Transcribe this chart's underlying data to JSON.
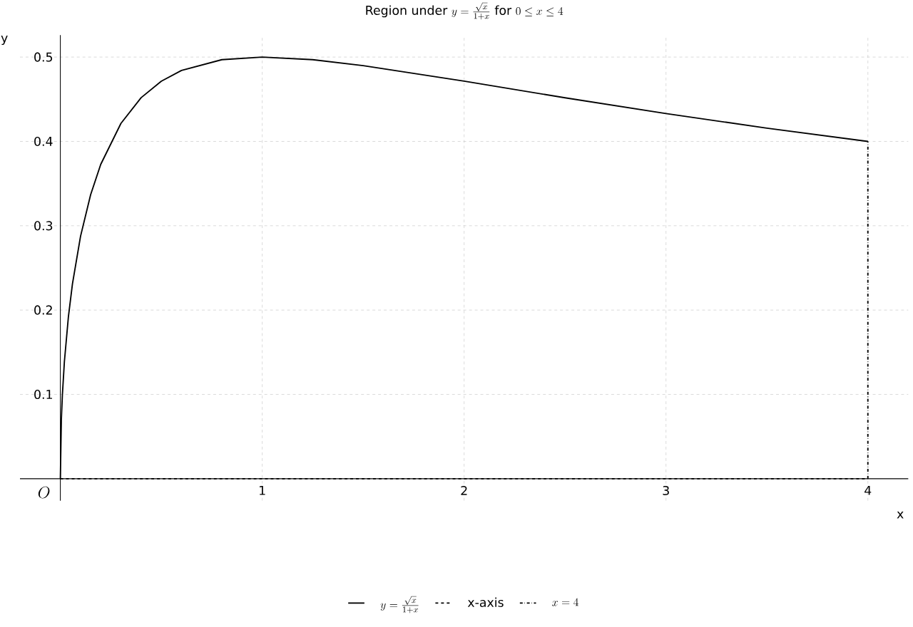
{
  "chart_data": {
    "type": "line",
    "title": "\\text{Region under } y=\\frac{\\sqrt{x}}{1+x} \\text{ for } 0\\leq x\\leq 4",
    "xlabel": "x",
    "ylabel": "y",
    "xlim": [
      -0.2,
      4.2
    ],
    "ylim": [
      -0.026,
      0.526
    ],
    "xticks": [
      1,
      2,
      3,
      4
    ],
    "yticks": [
      0.1,
      0.2,
      0.3,
      0.4,
      0.5
    ],
    "grid": true,
    "legend": "bottom",
    "annotations": [
      "O"
    ],
    "series": [
      {
        "name": "y=\\frac{\\sqrt{x}}{1+x}",
        "color": "#000000",
        "line_style": "solid",
        "x": [
          0,
          0.005,
          0.01,
          0.02,
          0.04,
          0.06,
          0.1,
          0.15,
          0.2,
          0.3,
          0.4,
          0.5,
          0.6,
          0.8,
          1,
          1.25,
          1.5,
          2,
          2.5,
          3,
          3.5,
          4
        ],
        "values": [
          0,
          0.0704,
          0.099,
          0.1387,
          0.1923,
          0.2311,
          0.2875,
          0.3368,
          0.3727,
          0.4213,
          0.4518,
          0.4714,
          0.4841,
          0.4969,
          0.5,
          0.4969,
          0.4899,
          0.4714,
          0.4517,
          0.433,
          0.4157,
          0.4
        ]
      },
      {
        "name": "\\text{x-axis}",
        "color": "#000000",
        "line_style": "dashed",
        "x": [
          0,
          4
        ],
        "values": [
          0,
          0
        ]
      },
      {
        "name": "x=4",
        "color": "#000000",
        "line_style": "dashdot",
        "x": [
          4,
          4
        ],
        "values": [
          0,
          0.4
        ]
      }
    ]
  }
}
